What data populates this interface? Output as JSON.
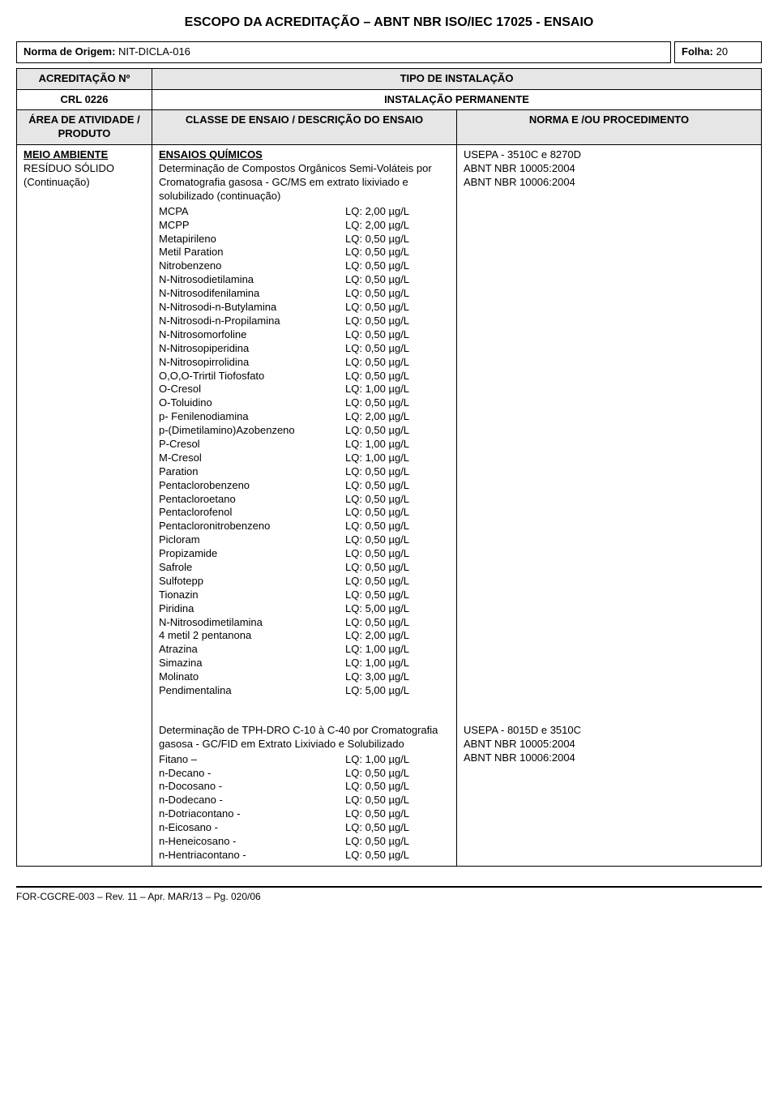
{
  "doc": {
    "title": "ESCOPO DA ACREDITAÇÃO – ABNT NBR ISO/IEC 17025 - ENSAIO",
    "origem_label": "Norma de Origem:",
    "origem_value": "NIT-DICLA-016",
    "folha_label": "Folha:",
    "folha_value": "20",
    "acreditacao_label": "ACREDITAÇÃO Nº",
    "tipo_instalacao_label": "TIPO DE INSTALAÇÃO",
    "crl": "CRL 0226",
    "instalacao": "INSTALAÇÃO PERMANENTE",
    "area_header": "ÁREA DE ATIVIDADE / PRODUTO",
    "classe_header": "CLASSE DE ENSAIO / DESCRIÇÃO DO ENSAIO",
    "norma_header": "NORMA E /OU PROCEDIMENTO",
    "area_title": "MEIO AMBIENTE",
    "area_sub1": "RESÍDUO SÓLIDO",
    "area_sub2": "(Continuação)",
    "ensaios_title": "ENSAIOS QUÍMICOS",
    "block1_intro": "Determinação de Compostos Orgânicos Semi-Voláteis por Cromatografia gasosa - GC/MS em extrato lixiviado e solubilizado (continuação)",
    "block1_norma1": "USEPA - 3510C e 8270D",
    "block1_norma2": "ABNT NBR 10005:2004",
    "block1_norma3": "ABNT NBR 10006:2004",
    "block1_items": [
      {
        "name": "MCPA",
        "lq": "LQ: 2,00 µg/L"
      },
      {
        "name": "MCPP",
        "lq": "LQ: 2,00 µg/L"
      },
      {
        "name": "Metapirileno",
        "lq": "LQ: 0,50 µg/L"
      },
      {
        "name": "Metil Paration",
        "lq": "LQ: 0,50 µg/L"
      },
      {
        "name": "Nitrobenzeno",
        "lq": "LQ: 0,50 µg/L"
      },
      {
        "name": "N-Nitrosodietilamina",
        "lq": "LQ: 0,50 µg/L"
      },
      {
        "name": "N-Nitrosodifenilamina",
        "lq": "LQ: 0,50 µg/L"
      },
      {
        "name": "N-Nitrosodi-n-Butylamina",
        "lq": "LQ: 0,50 µg/L"
      },
      {
        "name": "N-Nitrosodi-n-Propilamina",
        "lq": "LQ: 0,50 µg/L"
      },
      {
        "name": "N-Nitrosomorfoline",
        "lq": "LQ: 0,50 µg/L"
      },
      {
        "name": "N-Nitrosopiperidina",
        "lq": "LQ: 0,50 µg/L"
      },
      {
        "name": "N-Nitrosopirrolidina",
        "lq": "LQ: 0,50 µg/L"
      },
      {
        "name": "O,O,O-Trirtil Tiofosfato",
        "lq": "LQ: 0,50 µg/L"
      },
      {
        "name": "O-Cresol",
        "lq": "LQ: 1,00 µg/L"
      },
      {
        "name": "O-Toluidino",
        "lq": "LQ: 0,50 µg/L"
      },
      {
        "name": "p- Fenilenodiamina",
        "lq": "LQ: 2,00 µg/L"
      },
      {
        "name": "p-(Dimetilamino)Azobenzeno",
        "lq": "LQ: 0,50 µg/L"
      },
      {
        "name": "P-Cresol",
        "lq": "LQ: 1,00 µg/L"
      },
      {
        "name": "M-Cresol",
        "lq": "LQ: 1,00 µg/L"
      },
      {
        "name": "Paration",
        "lq": "LQ: 0,50 µg/L"
      },
      {
        "name": "Pentaclorobenzeno",
        "lq": "LQ: 0,50 µg/L"
      },
      {
        "name": "Pentacloroetano",
        "lq": "LQ: 0,50 µg/L"
      },
      {
        "name": "Pentaclorofenol",
        "lq": "LQ: 0,50 µg/L"
      },
      {
        "name": "Pentacloronitrobenzeno",
        "lq": "LQ: 0,50 µg/L"
      },
      {
        "name": "Picloram",
        "lq": "LQ: 0,50 µg/L"
      },
      {
        "name": "Propizamide",
        "lq": "LQ: 0,50 µg/L"
      },
      {
        "name": "Safrole",
        "lq": "LQ: 0,50 µg/L"
      },
      {
        "name": "Sulfotepp",
        "lq": "LQ: 0,50 µg/L"
      },
      {
        "name": "Tionazin",
        "lq": "LQ: 0,50 µg/L"
      },
      {
        "name": "Piridina",
        "lq": "LQ: 5,00 µg/L"
      },
      {
        "name": "N-Nitrosodimetilamina",
        "lq": "LQ: 0,50 µg/L"
      },
      {
        "name": "4 metil 2 pentanona",
        "lq": "LQ: 2,00 µg/L"
      },
      {
        "name": "Atrazina",
        "lq": "LQ: 1,00 µg/L"
      },
      {
        "name": "Simazina",
        "lq": "LQ: 1,00 µg/L"
      },
      {
        "name": "Molinato",
        "lq": "LQ: 3,00 µg/L"
      },
      {
        "name": "Pendimentalina",
        "lq": "LQ: 5,00 µg/L"
      }
    ],
    "block2_intro": "Determinação de TPH-DRO C-10 à C-40 por Cromatografia gasosa - GC/FID em Extrato Lixiviado e Solubilizado",
    "block2_norma1": "USEPA - 8015D e 3510C",
    "block2_norma2": "ABNT NBR 10005:2004",
    "block2_norma3": "ABNT NBR 10006:2004",
    "block2_items": [
      {
        "name": "Fitano –",
        "lq": "LQ: 1,00 µg/L"
      },
      {
        "name": "n-Decano -",
        "lq": "LQ: 0,50 µg/L"
      },
      {
        "name": "n-Docosano -",
        "lq": "LQ: 0,50 µg/L"
      },
      {
        "name": "n-Dodecano -",
        "lq": "LQ: 0,50 µg/L"
      },
      {
        "name": "n-Dotriacontano -",
        "lq": "LQ: 0,50 µg/L"
      },
      {
        "name": "n-Eicosano -",
        "lq": "LQ: 0,50 µg/L"
      },
      {
        "name": "n-Heneicosano -",
        "lq": "LQ: 0,50 µg/L"
      },
      {
        "name": "n-Hentriacontano -",
        "lq": "LQ: 0,50 µg/L"
      }
    ],
    "footer": "FOR-CGCRE-003 – Rev. 11 – Apr. MAR/13 – Pg. 020/06"
  }
}
